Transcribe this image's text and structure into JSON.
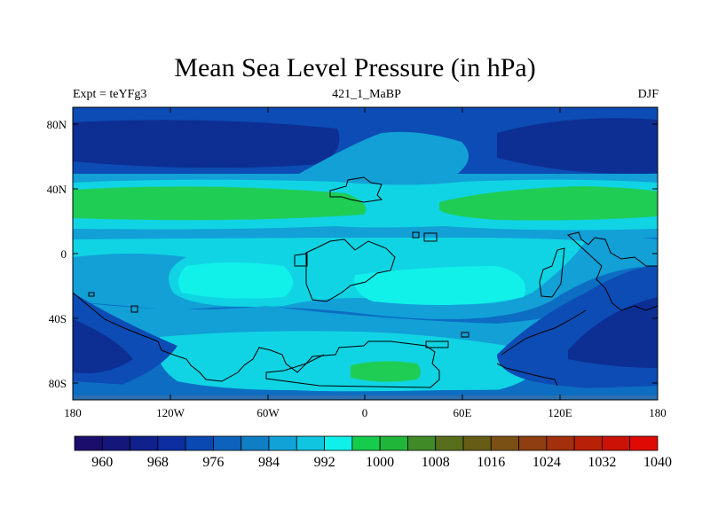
{
  "title": "Mean Sea Level Pressure (in hPa)",
  "subtitle_left": "Expt = teYFg3",
  "subtitle_center": "421_1_MaBP",
  "subtitle_right": "DJF",
  "x_ticks": [
    "180",
    "120W",
    "60W",
    "0",
    "60E",
    "120E",
    "180"
  ],
  "y_ticks": [
    "80N",
    "40N",
    "0",
    "40S",
    "80S"
  ],
  "colorbar": {
    "labels": [
      "960",
      "968",
      "976",
      "984",
      "992",
      "1000",
      "1008",
      "1016",
      "1024",
      "1032",
      "1040"
    ],
    "colors": [
      "#1a0d6b",
      "#14167a",
      "#10208c",
      "#0c2ea0",
      "#0a49b1",
      "#0c62bd",
      "#0f7ec5",
      "#11a3d8",
      "#10c5df",
      "#10f0ea",
      "#16cc4c",
      "#20b63a",
      "#408a28",
      "#586e1c",
      "#665c16",
      "#7a5014",
      "#8e3e10",
      "#a3300c",
      "#b82008",
      "#cc1206",
      "#e00a04"
    ]
  },
  "palette": {
    "deep": "#0a1a6e",
    "navy": "#0d2e92",
    "blue": "#0c4cb4",
    "mid": "#0d6dc3",
    "light": "#12a0d6",
    "cyan": "#10d4e4",
    "aqua": "#12f0ea",
    "green": "#1fcd55"
  }
}
